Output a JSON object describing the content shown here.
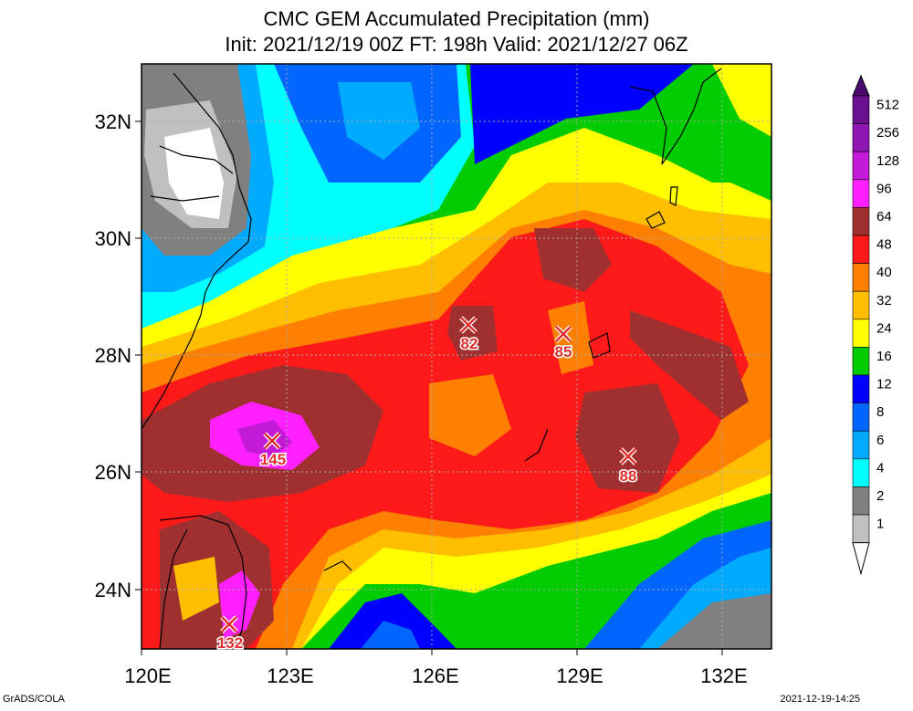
{
  "title_line1": "CMC GEM Accumulated Precipitation (mm)",
  "title_line2": "Init: 2021/12/19 00Z  FT: 198h  Valid: 2021/12/27 06Z",
  "footer_left": "GrADS/COLA",
  "footer_right": "2021-12-19-14:25",
  "lon_labels": [
    "120E",
    "123E",
    "126E",
    "129E",
    "132E"
  ],
  "lat_labels": [
    "32N",
    "30N",
    "28N",
    "26N",
    "24N"
  ],
  "colorbar": {
    "labels": [
      "512",
      "256",
      "128",
      "96",
      "64",
      "48",
      "40",
      "32",
      "24",
      "16",
      "12",
      "8",
      "6",
      "4",
      "2",
      "1"
    ],
    "colors": [
      "#6a0f8f",
      "#8f16b3",
      "#c21ad6",
      "#ff1fff",
      "#a03030",
      "#ff1a1a",
      "#ff7f00",
      "#ffbf00",
      "#ffff00",
      "#00cc00",
      "#0000ff",
      "#0066ff",
      "#00aaff",
      "#00ffff",
      "#808080",
      "#c0c0c0"
    ]
  },
  "markers": [
    {
      "label": "145"
    },
    {
      "label": "132"
    },
    {
      "label": "82"
    },
    {
      "label": "85"
    },
    {
      "label": "88"
    }
  ]
}
